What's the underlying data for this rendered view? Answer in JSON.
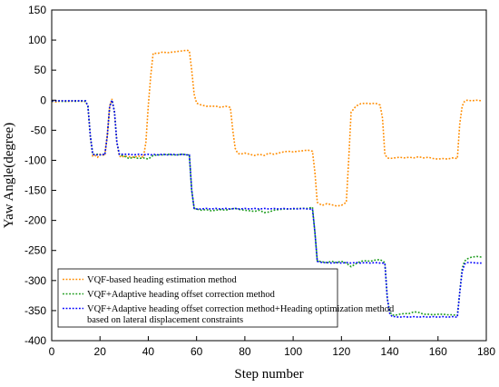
{
  "chart_data": {
    "type": "line",
    "title": "",
    "xlabel": "Step number",
    "ylabel": "Yaw Angle(degree)",
    "xlim": [
      0,
      180
    ],
    "ylim": [
      -400,
      150
    ],
    "xticks": [
      0,
      20,
      40,
      60,
      80,
      100,
      120,
      140,
      160,
      180
    ],
    "yticks": [
      150,
      100,
      50,
      0,
      -50,
      -100,
      -150,
      -200,
      -250,
      -300,
      -350,
      -400
    ],
    "grid": false,
    "legend_position": "bottom-left",
    "series": [
      {
        "name": "VQF-based heading estimation method",
        "color": "#ff8c00",
        "points": [
          [
            0,
            -2
          ],
          [
            2,
            -3
          ],
          [
            4,
            -1
          ],
          [
            6,
            -2
          ],
          [
            8,
            -2
          ],
          [
            10,
            -1
          ],
          [
            12,
            -2
          ],
          [
            14,
            -2
          ],
          [
            15,
            -10
          ],
          [
            16,
            -60
          ],
          [
            17,
            -93
          ],
          [
            18,
            -92
          ],
          [
            19,
            -95
          ],
          [
            20,
            -90
          ],
          [
            21,
            -91
          ],
          [
            22,
            -92
          ],
          [
            23,
            -60
          ],
          [
            24,
            -10
          ],
          [
            25,
            2
          ],
          [
            26,
            -20
          ],
          [
            27,
            -70
          ],
          [
            28,
            -93
          ],
          [
            29,
            -95
          ],
          [
            30,
            -93
          ],
          [
            32,
            -94
          ],
          [
            34,
            -95
          ],
          [
            36,
            -93
          ],
          [
            38,
            -95
          ],
          [
            39,
            -70
          ],
          [
            40,
            -10
          ],
          [
            41,
            40
          ],
          [
            42,
            78
          ],
          [
            44,
            78
          ],
          [
            46,
            80
          ],
          [
            48,
            79
          ],
          [
            50,
            80
          ],
          [
            52,
            81
          ],
          [
            54,
            82
          ],
          [
            56,
            83
          ],
          [
            57,
            82
          ],
          [
            58,
            50
          ],
          [
            59,
            10
          ],
          [
            60,
            -5
          ],
          [
            62,
            -8
          ],
          [
            64,
            -10
          ],
          [
            66,
            -10
          ],
          [
            68,
            -10
          ],
          [
            70,
            -12
          ],
          [
            72,
            -10
          ],
          [
            74,
            -12
          ],
          [
            75,
            -50
          ],
          [
            76,
            -80
          ],
          [
            77,
            -88
          ],
          [
            78,
            -90
          ],
          [
            80,
            -88
          ],
          [
            82,
            -90
          ],
          [
            84,
            -92
          ],
          [
            86,
            -90
          ],
          [
            88,
            -92
          ],
          [
            90,
            -88
          ],
          [
            92,
            -90
          ],
          [
            94,
            -88
          ],
          [
            96,
            -86
          ],
          [
            98,
            -85
          ],
          [
            100,
            -86
          ],
          [
            102,
            -85
          ],
          [
            104,
            -84
          ],
          [
            106,
            -83
          ],
          [
            108,
            -85
          ],
          [
            109,
            -120
          ],
          [
            110,
            -170
          ],
          [
            112,
            -175
          ],
          [
            114,
            -172
          ],
          [
            116,
            -174
          ],
          [
            118,
            -176
          ],
          [
            120,
            -175
          ],
          [
            122,
            -170
          ],
          [
            123,
            -100
          ],
          [
            124,
            -20
          ],
          [
            126,
            -10
          ],
          [
            128,
            -6
          ],
          [
            130,
            -5
          ],
          [
            132,
            -6
          ],
          [
            134,
            -5
          ],
          [
            136,
            -8
          ],
          [
            137,
            -30
          ],
          [
            138,
            -90
          ],
          [
            139,
            -96
          ],
          [
            140,
            -97
          ],
          [
            142,
            -96
          ],
          [
            144,
            -95
          ],
          [
            146,
            -96
          ],
          [
            148,
            -95
          ],
          [
            150,
            -96
          ],
          [
            152,
            -94
          ],
          [
            154,
            -96
          ],
          [
            156,
            -95
          ],
          [
            158,
            -97
          ],
          [
            160,
            -98
          ],
          [
            162,
            -97
          ],
          [
            164,
            -98
          ],
          [
            166,
            -96
          ],
          [
            168,
            -97
          ],
          [
            169,
            -40
          ],
          [
            170,
            -10
          ],
          [
            171,
            -2
          ],
          [
            172,
            0
          ],
          [
            174,
            -1
          ],
          [
            176,
            0
          ],
          [
            178,
            -1
          ]
        ]
      },
      {
        "name": "VQF+Adaptive heading offset correction method",
        "color": "#1a9b1a",
        "points": [
          [
            0,
            -2
          ],
          [
            2,
            -1
          ],
          [
            4,
            -2
          ],
          [
            6,
            -2
          ],
          [
            8,
            -1
          ],
          [
            10,
            -2
          ],
          [
            12,
            -1
          ],
          [
            14,
            -2
          ],
          [
            15,
            -10
          ],
          [
            16,
            -60
          ],
          [
            17,
            -90
          ],
          [
            18,
            -91
          ],
          [
            19,
            -90
          ],
          [
            20,
            -91
          ],
          [
            21,
            -90
          ],
          [
            22,
            -91
          ],
          [
            23,
            -60
          ],
          [
            24,
            -10
          ],
          [
            25,
            0
          ],
          [
            26,
            -20
          ],
          [
            27,
            -70
          ],
          [
            28,
            -90
          ],
          [
            29,
            -92
          ],
          [
            30,
            -93
          ],
          [
            32,
            -97
          ],
          [
            34,
            -95
          ],
          [
            36,
            -97
          ],
          [
            38,
            -96
          ],
          [
            40,
            -98
          ],
          [
            41,
            -95
          ],
          [
            42,
            -92
          ],
          [
            44,
            -91
          ],
          [
            46,
            -91
          ],
          [
            48,
            -90
          ],
          [
            50,
            -91
          ],
          [
            52,
            -91
          ],
          [
            54,
            -90
          ],
          [
            56,
            -91
          ],
          [
            57,
            -91
          ],
          [
            58,
            -150
          ],
          [
            59,
            -180
          ],
          [
            60,
            -181
          ],
          [
            62,
            -183
          ],
          [
            64,
            -182
          ],
          [
            66,
            -184
          ],
          [
            68,
            -183
          ],
          [
            70,
            -182
          ],
          [
            72,
            -183
          ],
          [
            74,
            -181
          ],
          [
            76,
            -180
          ],
          [
            78,
            -182
          ],
          [
            80,
            -183
          ],
          [
            82,
            -184
          ],
          [
            84,
            -185
          ],
          [
            86,
            -183
          ],
          [
            88,
            -187
          ],
          [
            90,
            -186
          ],
          [
            92,
            -183
          ],
          [
            94,
            -182
          ],
          [
            96,
            -181
          ],
          [
            98,
            -181
          ],
          [
            100,
            -181
          ],
          [
            102,
            -180
          ],
          [
            104,
            -180
          ],
          [
            106,
            -180
          ],
          [
            108,
            -178
          ],
          [
            109,
            -220
          ],
          [
            110,
            -267
          ],
          [
            112,
            -269
          ],
          [
            114,
            -270
          ],
          [
            116,
            -268
          ],
          [
            118,
            -270
          ],
          [
            120,
            -268
          ],
          [
            122,
            -271
          ],
          [
            124,
            -277
          ],
          [
            126,
            -272
          ],
          [
            128,
            -268
          ],
          [
            130,
            -267
          ],
          [
            132,
            -268
          ],
          [
            134,
            -266
          ],
          [
            136,
            -265
          ],
          [
            138,
            -270
          ],
          [
            139,
            -330
          ],
          [
            140,
            -352
          ],
          [
            141,
            -357
          ],
          [
            142,
            -358
          ],
          [
            144,
            -356
          ],
          [
            146,
            -355
          ],
          [
            148,
            -355
          ],
          [
            150,
            -352
          ],
          [
            152,
            -353
          ],
          [
            154,
            -356
          ],
          [
            156,
            -356
          ],
          [
            158,
            -357
          ],
          [
            160,
            -356
          ],
          [
            162,
            -356
          ],
          [
            164,
            -357
          ],
          [
            166,
            -357
          ],
          [
            168,
            -358
          ],
          [
            169,
            -320
          ],
          [
            170,
            -280
          ],
          [
            171,
            -268
          ],
          [
            172,
            -264
          ],
          [
            174,
            -261
          ],
          [
            176,
            -260
          ],
          [
            178,
            -261
          ]
        ]
      },
      {
        "name": "VQF+Adaptive heading offset correction method+Heading optimization method based on lateral displacement constraints",
        "color": "#0000ff",
        "points": [
          [
            0,
            -1
          ],
          [
            2,
            -1
          ],
          [
            4,
            -1
          ],
          [
            6,
            -1
          ],
          [
            8,
            -1
          ],
          [
            10,
            -1
          ],
          [
            12,
            -1
          ],
          [
            14,
            -1
          ],
          [
            15,
            -10
          ],
          [
            16,
            -60
          ],
          [
            17,
            -90
          ],
          [
            18,
            -91
          ],
          [
            19,
            -91
          ],
          [
            20,
            -91
          ],
          [
            21,
            -90
          ],
          [
            22,
            -91
          ],
          [
            23,
            -60
          ],
          [
            24,
            -10
          ],
          [
            25,
            0
          ],
          [
            26,
            -20
          ],
          [
            27,
            -70
          ],
          [
            28,
            -90
          ],
          [
            29,
            -90
          ],
          [
            30,
            -90
          ],
          [
            32,
            -90
          ],
          [
            34,
            -91
          ],
          [
            36,
            -90
          ],
          [
            38,
            -91
          ],
          [
            40,
            -90
          ],
          [
            41,
            -91
          ],
          [
            42,
            -90
          ],
          [
            44,
            -91
          ],
          [
            46,
            -90
          ],
          [
            48,
            -91
          ],
          [
            50,
            -90
          ],
          [
            52,
            -91
          ],
          [
            54,
            -90
          ],
          [
            56,
            -91
          ],
          [
            57,
            -91
          ],
          [
            58,
            -150
          ],
          [
            59,
            -180
          ],
          [
            60,
            -181
          ],
          [
            62,
            -181
          ],
          [
            64,
            -180
          ],
          [
            66,
            -181
          ],
          [
            68,
            -180
          ],
          [
            70,
            -181
          ],
          [
            72,
            -180
          ],
          [
            74,
            -181
          ],
          [
            76,
            -180
          ],
          [
            78,
            -181
          ],
          [
            80,
            -180
          ],
          [
            82,
            -181
          ],
          [
            84,
            -180
          ],
          [
            86,
            -181
          ],
          [
            88,
            -180
          ],
          [
            90,
            -181
          ],
          [
            92,
            -180
          ],
          [
            94,
            -181
          ],
          [
            96,
            -180
          ],
          [
            98,
            -181
          ],
          [
            100,
            -180
          ],
          [
            102,
            -181
          ],
          [
            104,
            -180
          ],
          [
            106,
            -181
          ],
          [
            108,
            -181
          ],
          [
            109,
            -220
          ],
          [
            110,
            -268
          ],
          [
            112,
            -270
          ],
          [
            114,
            -270
          ],
          [
            116,
            -271
          ],
          [
            118,
            -270
          ],
          [
            120,
            -271
          ],
          [
            122,
            -270
          ],
          [
            124,
            -271
          ],
          [
            126,
            -270
          ],
          [
            128,
            -271
          ],
          [
            130,
            -270
          ],
          [
            132,
            -271
          ],
          [
            134,
            -270
          ],
          [
            136,
            -271
          ],
          [
            138,
            -271
          ],
          [
            139,
            -330
          ],
          [
            140,
            -355
          ],
          [
            141,
            -360
          ],
          [
            142,
            -360
          ],
          [
            144,
            -361
          ],
          [
            146,
            -360
          ],
          [
            148,
            -361
          ],
          [
            150,
            -360
          ],
          [
            152,
            -361
          ],
          [
            154,
            -360
          ],
          [
            156,
            -361
          ],
          [
            158,
            -360
          ],
          [
            160,
            -361
          ],
          [
            162,
            -360
          ],
          [
            164,
            -361
          ],
          [
            166,
            -360
          ],
          [
            168,
            -361
          ],
          [
            169,
            -320
          ],
          [
            170,
            -285
          ],
          [
            171,
            -273
          ],
          [
            172,
            -270
          ],
          [
            174,
            -270
          ],
          [
            176,
            -271
          ],
          [
            178,
            -271
          ]
        ]
      }
    ]
  }
}
